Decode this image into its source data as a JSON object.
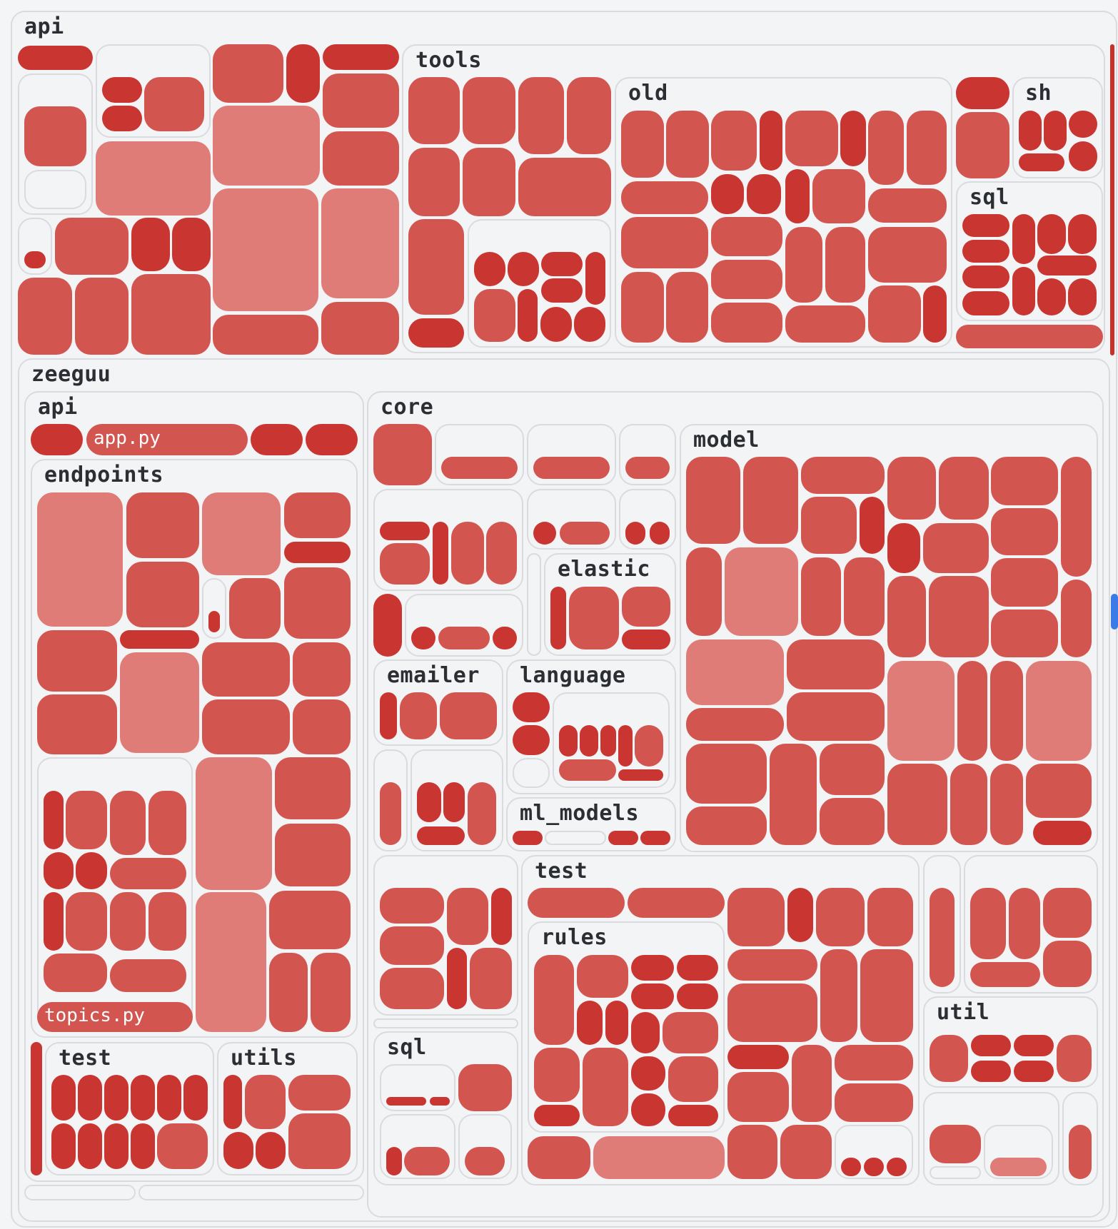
{
  "treemap": {
    "root_label": "api",
    "tools_label": "tools",
    "tools_old_label": "old",
    "tools_sh_label": "sh",
    "tools_sql_label": "sql",
    "zeeguu_label": "zeeguu",
    "zeeguu_api_label": "api",
    "app_file": "app.py",
    "endpoints_label": "endpoints",
    "topics_file": "topics.py",
    "api_test_label": "test",
    "api_utils_label": "utils",
    "core_label": "core",
    "model_label": "model",
    "elastic_label": "elastic",
    "emailer_label": "emailer",
    "language_label": "language",
    "ml_models_label": "ml_models",
    "core_test_label": "test",
    "rules_label": "rules",
    "core_sql_label": "sql",
    "util_label": "util"
  },
  "colors": {
    "tile": "#d35550",
    "tile_dark": "#c93631",
    "tile_light": "#df7c78",
    "border": "#d9dbde",
    "background": "#f4f5f7",
    "scroll_knob": "#3b7be8"
  }
}
